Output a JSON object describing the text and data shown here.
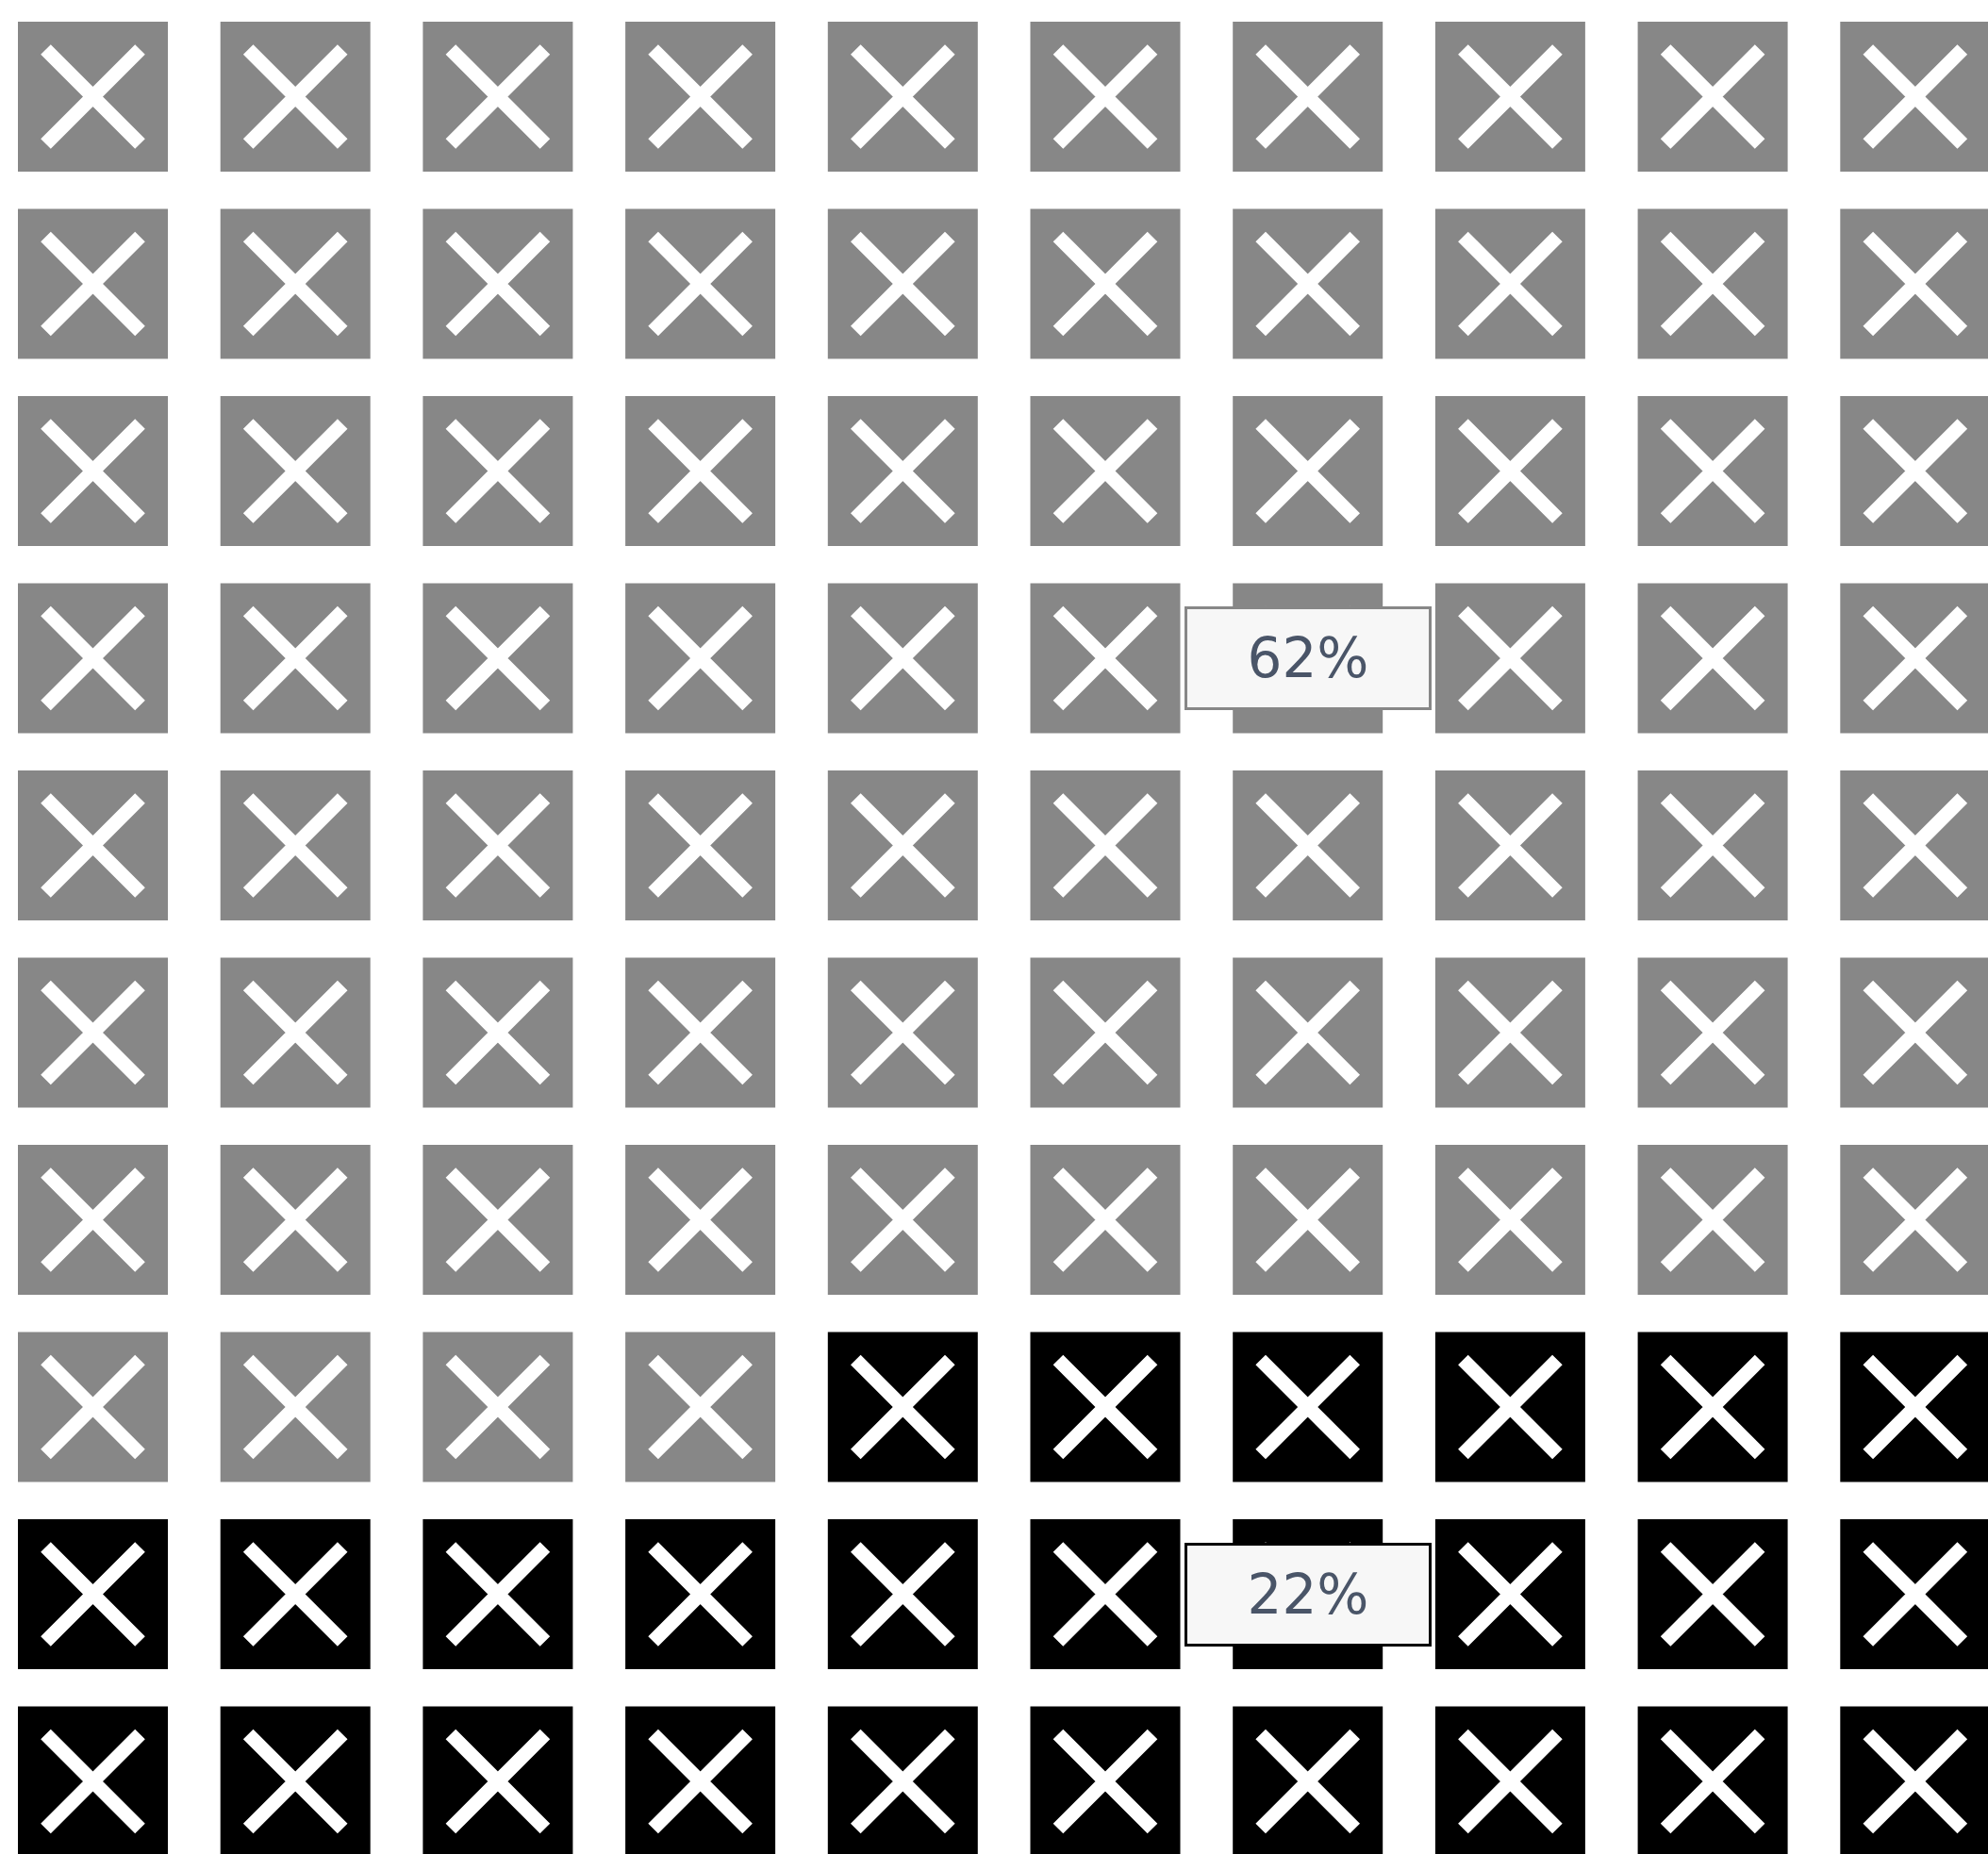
{
  "chart_data": {
    "type": "other",
    "categories": [
      null,
      null
    ],
    "values": [
      62,
      22
    ],
    "value_labels": [
      "62%",
      "22%"
    ],
    "colors": [
      "#878787",
      "#000000"
    ]
  }
}
